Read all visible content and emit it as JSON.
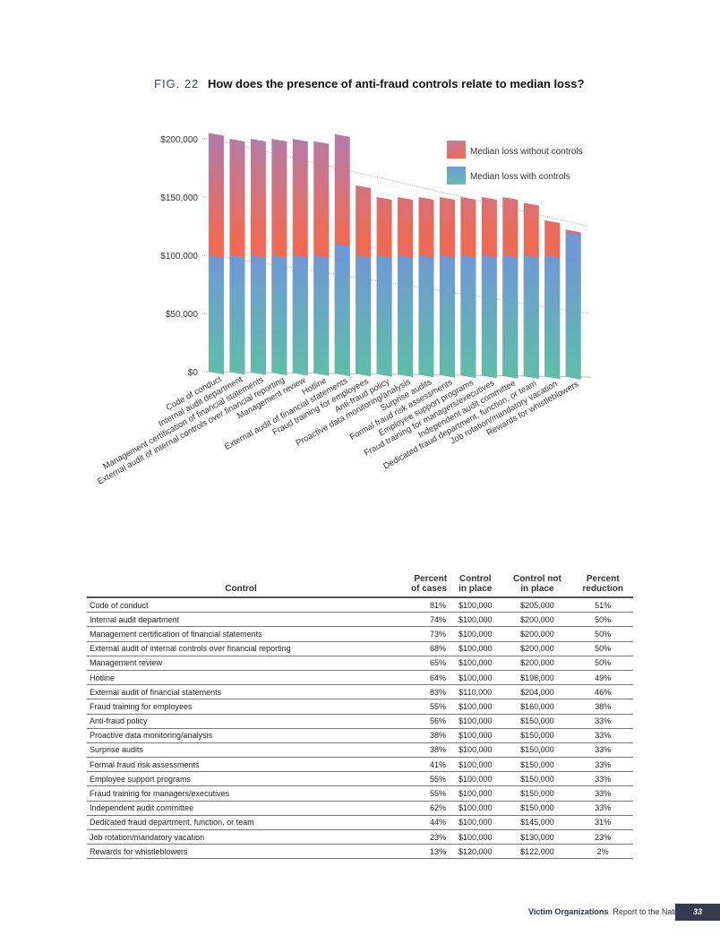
{
  "figure": {
    "label": "FIG. 22",
    "title": "How does the presence of anti-fraud controls relate to median loss?"
  },
  "chart_data": {
    "type": "bar",
    "categories": [
      "Code of conduct",
      "Internal audit department",
      "Management certification of financial statements",
      "External audit of internal controls over financial reporting",
      "Management review",
      "Hotline",
      "External audit of financial statements",
      "Fraud training for employees",
      "Anti-fraud policy",
      "Proactive data monitoring/analysis",
      "Surprise audits",
      "Formal fraud risk assessments",
      "Employee support programs",
      "Fraud training for managers/executives",
      "Independent audit committee",
      "Dedicated fraud department, function, or team",
      "Job rotation/mandatory vacation",
      "Rewards for whistleblowers"
    ],
    "series": [
      {
        "name": "Median loss without controls",
        "values": [
          205000,
          200000,
          200000,
          200000,
          200000,
          198000,
          204000,
          160000,
          150000,
          150000,
          150000,
          150000,
          150000,
          150000,
          150000,
          145000,
          130000,
          122000
        ],
        "colors": [
          "#b57ba6",
          "#ee6a55"
        ]
      },
      {
        "name": "Median loss with controls",
        "values": [
          100000,
          100000,
          100000,
          100000,
          100000,
          100000,
          110000,
          100000,
          100000,
          100000,
          100000,
          100000,
          100000,
          100000,
          100000,
          100000,
          100000,
          120000
        ],
        "colors": [
          "#6e98d6",
          "#5fbcaa"
        ]
      }
    ],
    "yticks": [
      "$0",
      "$50,000",
      "$100,000",
      "$150,000",
      "$200,000"
    ],
    "ylim": [
      0,
      200000
    ],
    "legend": "top-right",
    "grid": false
  },
  "table": {
    "headers": [
      "Control",
      "Percent\nof cases",
      "Control\nin place",
      "Control not\nin place",
      "Percent\nreduction"
    ],
    "rows": [
      [
        "Code of conduct",
        "81%",
        "$100,000",
        "$205,000",
        "51%"
      ],
      [
        "Internal audit department",
        "74%",
        "$100,000",
        "$200,000",
        "50%"
      ],
      [
        "Management certification of financial statements",
        "73%",
        "$100,000",
        "$200,000",
        "50%"
      ],
      [
        "External audit of internal controls over financial reporting",
        "68%",
        "$100,000",
        "$200,000",
        "50%"
      ],
      [
        "Management review",
        "65%",
        "$100,000",
        "$200,000",
        "50%"
      ],
      [
        "Hotline",
        "64%",
        "$100,000",
        "$198,000",
        "49%"
      ],
      [
        "External audit of financial statements",
        "83%",
        "$110,000",
        "$204,000",
        "46%"
      ],
      [
        "Fraud training for employees",
        "55%",
        "$100,000",
        "$160,000",
        "38%"
      ],
      [
        "Anti-fraud policy",
        "56%",
        "$100,000",
        "$150,000",
        "33%"
      ],
      [
        "Proactive data monitoring/analysis",
        "38%",
        "$100,000",
        "$150,000",
        "33%"
      ],
      [
        "Surprise audits",
        "38%",
        "$100,000",
        "$150,000",
        "33%"
      ],
      [
        "Formal fraud risk assessments",
        "41%",
        "$100,000",
        "$150,000",
        "33%"
      ],
      [
        "Employee support programs",
        "55%",
        "$100,000",
        "$150,000",
        "33%"
      ],
      [
        "Fraud training for managers/executives",
        "55%",
        "$100,000",
        "$150,000",
        "33%"
      ],
      [
        "Independent audit committee",
        "62%",
        "$100,000",
        "$150,000",
        "33%"
      ],
      [
        "Dedicated fraud department, function, or team",
        "44%",
        "$100,000",
        "$145,000",
        "31%"
      ],
      [
        "Job rotation/mandatory vacation",
        "23%",
        "$100,000",
        "$130,000",
        "23%"
      ],
      [
        "Rewards for whistleblowers",
        "13%",
        "$120,000",
        "$122,000",
        "2%"
      ]
    ]
  },
  "footer": {
    "section": "Victim Organizations",
    "report": "Report to the Nations",
    "page": "33"
  }
}
